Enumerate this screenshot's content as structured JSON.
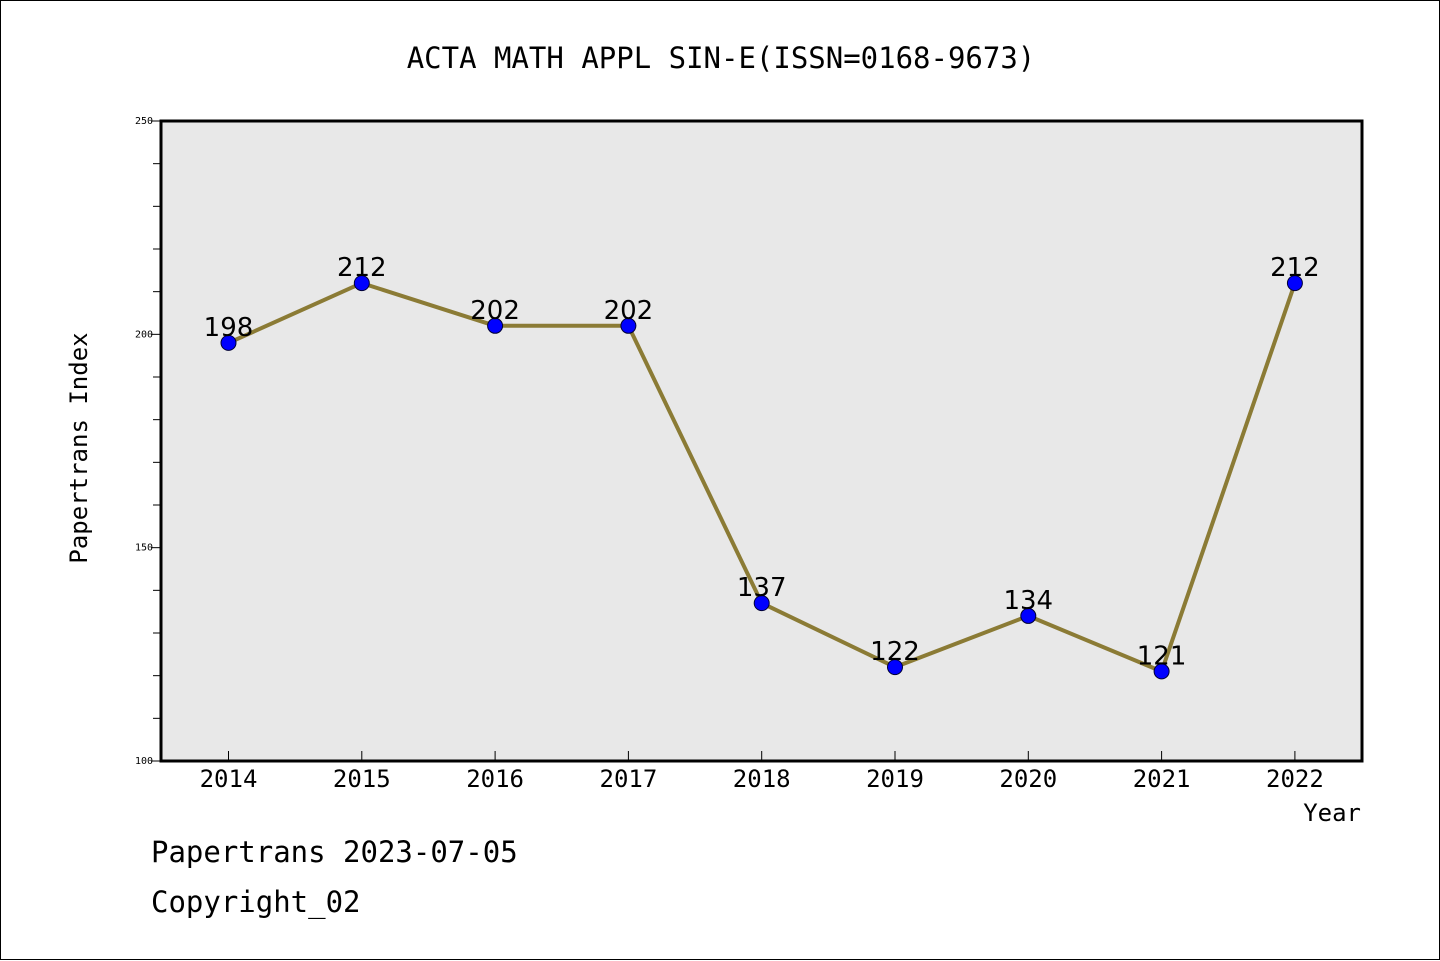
{
  "chart_data": {
    "type": "line",
    "title": "ACTA MATH APPL SIN-E(ISSN=0168-9673)",
    "xlabel": "Year",
    "ylabel": "Papertrans Index",
    "categories": [
      "2014",
      "2015",
      "2016",
      "2017",
      "2018",
      "2019",
      "2020",
      "2021",
      "2022"
    ],
    "values": [
      198,
      212,
      202,
      202,
      137,
      122,
      134,
      121,
      212
    ],
    "data_labels": [
      "198",
      "212",
      "202",
      "202",
      "137",
      "122",
      "134",
      "121",
      "212"
    ],
    "ylim": [
      100,
      250
    ],
    "yticks": [
      "100",
      "150",
      "200",
      "250"
    ],
    "grid": false,
    "line_color": "#8B7B35",
    "marker_color": "#0000FF",
    "plot_background": "#E8E8E8"
  },
  "footer": {
    "line1": "Papertrans 2023-07-05",
    "line2": "Copyright_02"
  }
}
